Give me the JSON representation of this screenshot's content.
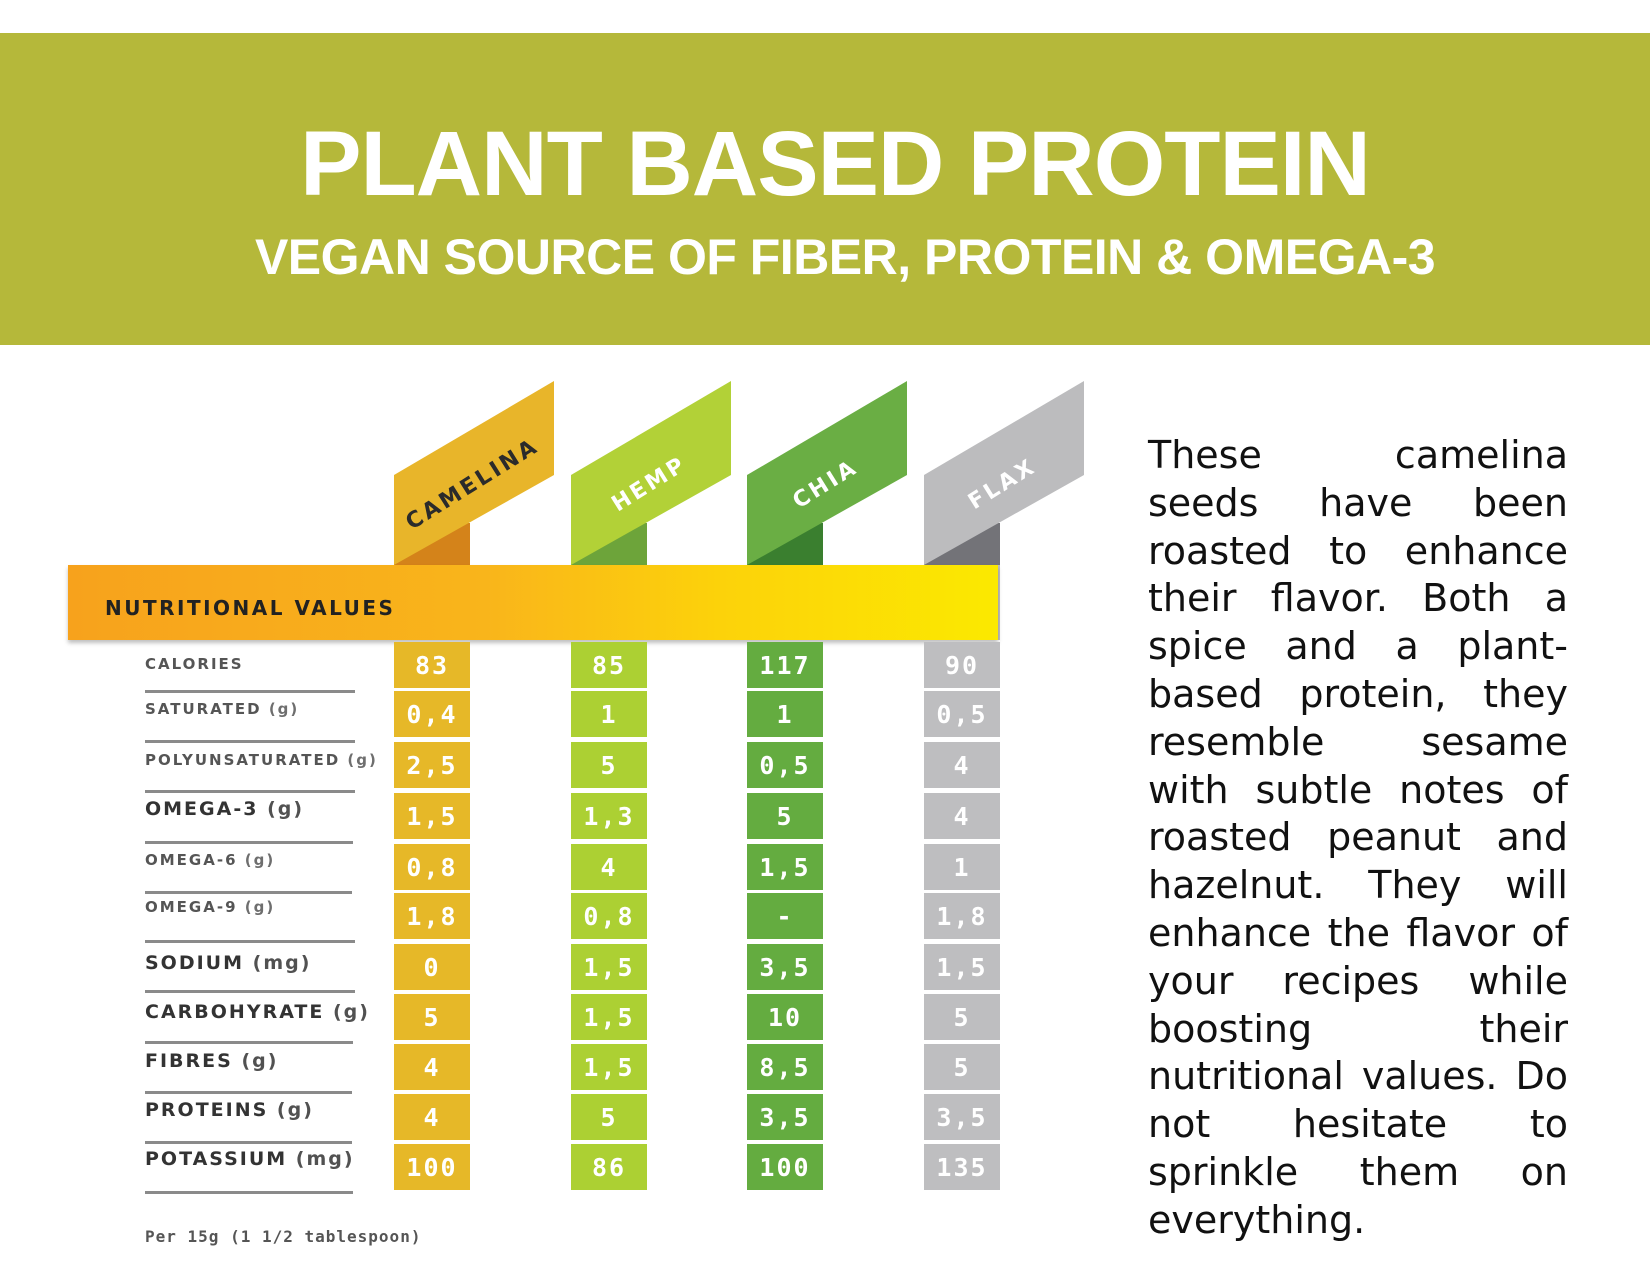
{
  "header": {
    "title": "PLANT BASED PROTEIN",
    "subtitle": "VEGAN SOURCE OF FIBER, PROTEIN & OMEGA-3"
  },
  "table": {
    "band_label": "NUTRITIONAL VALUES",
    "columns": [
      {
        "name": "CAMELINA",
        "color": "#e6b828",
        "fold": "#d4831a",
        "flag": "#e8b52a"
      },
      {
        "name": "HEMP",
        "color": "#acd033",
        "fold": "#6da43a",
        "flag": "#b2d137"
      },
      {
        "name": "CHIA",
        "color": "#64ac40",
        "fold": "#3a7f2f",
        "flag": "#6aae44"
      },
      {
        "name": "FLAX",
        "color": "#bebec0",
        "fold": "#737378",
        "flag": "#bcbcbe"
      }
    ],
    "rows": [
      {
        "label": "CALORIES",
        "unit": "",
        "values": [
          "83",
          "85",
          "117",
          "90"
        ]
      },
      {
        "label": "SATURATED",
        "unit": "(g)",
        "values": [
          "0,4",
          "1",
          "1",
          "0,5"
        ]
      },
      {
        "label": "POLYUNSATURATED",
        "unit": "(g)",
        "values": [
          "2,5",
          "5",
          "0,5",
          "4"
        ]
      },
      {
        "label": "OMEGA-3",
        "unit": "(g)",
        "values": [
          "1,5",
          "1,3",
          "5",
          "4"
        ]
      },
      {
        "label": "OMEGA-6",
        "unit": "(g)",
        "values": [
          "0,8",
          "4",
          "1,5",
          "1"
        ]
      },
      {
        "label": "OMEGA-9",
        "unit": "(g)",
        "values": [
          "1,8",
          "0,8",
          "-",
          "1,8"
        ]
      },
      {
        "label": "SODIUM",
        "unit": "(mg)",
        "values": [
          "0",
          "1,5",
          "3,5",
          "1,5"
        ]
      },
      {
        "label": "CARBOHYRATE",
        "unit": "(g)",
        "values": [
          "5",
          "1,5",
          "10",
          "5"
        ]
      },
      {
        "label": "FIBRES",
        "unit": "(g)",
        "values": [
          "4",
          "1,5",
          "8,5",
          "5"
        ]
      },
      {
        "label": "PROTEINS",
        "unit": "(g)",
        "values": [
          "4",
          "5",
          "3,5",
          "3,5"
        ]
      },
      {
        "label": "POTASSIUM",
        "unit": "(mg)",
        "values": [
          "100",
          "86",
          "100",
          "135"
        ]
      }
    ],
    "footnote": "Per 15g (1 1/2 tablespoon)"
  },
  "description": "These camelina seeds have been roasted to enhance their flavor. Both a spice and a plant-based protein, they resemble sesame with subtle notes of roasted peanut and hazelnut. They will enhance the flavor of your recipes while boosting their nutritional values. Do not hesitate to sprinkle them on everything."
}
